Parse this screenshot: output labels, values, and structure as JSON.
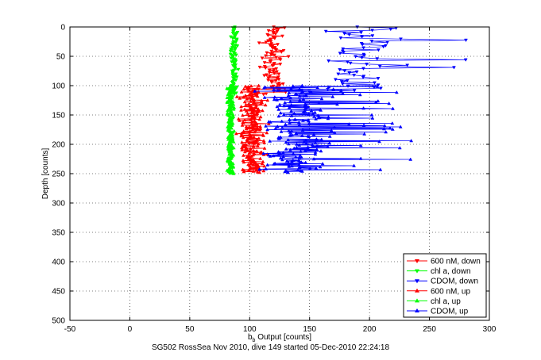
{
  "chart_data": {
    "type": "scatter",
    "title": "",
    "xlabel": "b_b Output [counts]",
    "xlabel_main": "b",
    "xlabel_sub": "b",
    "xlabel_rest": " Output [counts]",
    "ylabel": "Depth [counts]",
    "caption": "SG502 RossSea Nov 2010, dive 149 started 05-Dec-2010 22:24:18",
    "xlim": [
      -50,
      300
    ],
    "ylim": [
      0,
      500
    ],
    "y_reversed": true,
    "grid": true,
    "xticks": [
      "-50",
      "0",
      "50",
      "100",
      "150",
      "200",
      "250",
      "300"
    ],
    "yticks": [
      "0",
      "50",
      "100",
      "150",
      "200",
      "250",
      "300",
      "350",
      "400",
      "450",
      "500"
    ],
    "legend_position": "bottom-right",
    "series": [
      {
        "name": "600 nM, down",
        "color": "#ff0000",
        "marker": "triangle-down",
        "line": true,
        "depth_range": [
          0,
          115
        ],
        "x_center": 119,
        "x_spread": 18,
        "count": 90
      },
      {
        "name": "chl a, down",
        "color": "#00ff00",
        "marker": "triangle-down",
        "line": true,
        "depth_range": [
          0,
          115
        ],
        "x_center": 87,
        "x_spread": 4,
        "count": 90
      },
      {
        "name": "CDOM, down",
        "color": "#0000ff",
        "marker": "triangle-down",
        "line": true,
        "depth_range": [
          0,
          110
        ],
        "x_center": 190,
        "x_spread": 45,
        "count": 60
      },
      {
        "name": "600 nM, up",
        "color": "#ff0000",
        "marker": "triangle-up",
        "line": true,
        "depth_range": [
          100,
          248
        ],
        "x_center": 102,
        "x_spread": 16,
        "count": 220
      },
      {
        "name": "chl a, up",
        "color": "#00ff00",
        "marker": "triangle-up",
        "line": true,
        "depth_range": [
          100,
          250
        ],
        "x_center": 84,
        "x_spread": 4,
        "count": 220
      },
      {
        "name": "CDOM, up",
        "color": "#0000ff",
        "marker": "triangle-up",
        "line": true,
        "depth_range": [
          100,
          248
        ],
        "x_center": 135,
        "x_spread": 45,
        "count": 220
      }
    ]
  }
}
